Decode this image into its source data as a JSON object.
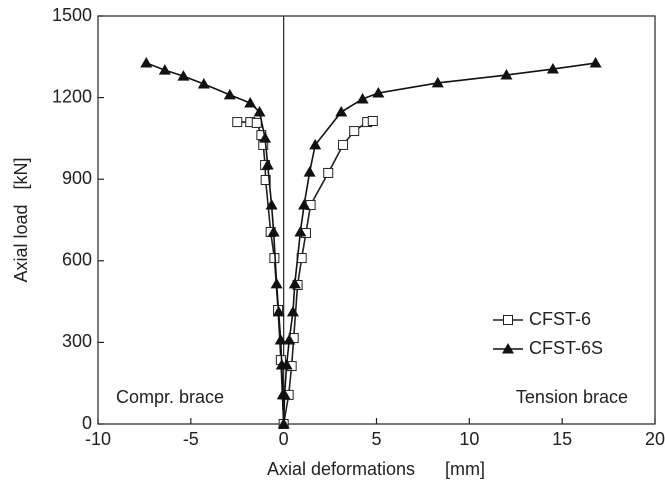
{
  "chart_data": {
    "type": "line",
    "x_label": "Axial deformations      [mm]",
    "y_label": "Axial load   [kN]",
    "annotations": [
      "Compr. brace",
      "Tension brace"
    ],
    "xlim": [
      -10,
      20
    ],
    "xticks": [
      -10,
      -5,
      0,
      5,
      10,
      15,
      20
    ],
    "ylim": [
      0,
      1500
    ],
    "yticks": [
      0,
      300,
      600,
      900,
      1200,
      1500
    ],
    "grid": false,
    "legend": "lower right",
    "series": [
      {
        "name": "CFST-6",
        "color": "#222222",
        "marker": "open-square",
        "x": [
          -2.5,
          -1.8,
          -1.45,
          -1.2,
          -1.1,
          -1.0,
          -0.97,
          -0.7,
          -0.5,
          -0.3,
          -0.15,
          0,
          0.27,
          0.43,
          0.54,
          0.75,
          0.97,
          1.2,
          1.45,
          2.4,
          3.2,
          3.8,
          4.5,
          4.8
        ],
        "values": [
          1110,
          1110,
          1107,
          1062,
          1026,
          952,
          897,
          706,
          610,
          419,
          235,
          0,
          107,
          213,
          316,
          511,
          610,
          702,
          805,
          923,
          1026,
          1077,
          1110,
          1114
        ]
      },
      {
        "name": "CFST-6S",
        "color": "#111111",
        "marker": "filled-triangle",
        "x": [
          -7.4,
          -6.4,
          -5.4,
          -4.3,
          -2.9,
          -1.8,
          -1.3,
          -1.0,
          -0.86,
          -0.65,
          -0.54,
          -0.38,
          -0.27,
          -0.16,
          -0.1,
          -0.05,
          0,
          0.05,
          0.16,
          0.3,
          0.5,
          0.6,
          0.9,
          1.1,
          1.4,
          1.7,
          3.1,
          4.25,
          5.1,
          8.3,
          12.0,
          14.5,
          16.8
        ],
        "values": [
          1327,
          1301,
          1279,
          1250,
          1210,
          1180,
          1147,
          1051,
          952,
          805,
          706,
          515,
          412,
          309,
          217,
          107,
          0,
          107,
          217,
          309,
          412,
          515,
          706,
          805,
          926,
          1026,
          1147,
          1195,
          1217,
          1254,
          1283,
          1305,
          1327
        ]
      }
    ]
  }
}
